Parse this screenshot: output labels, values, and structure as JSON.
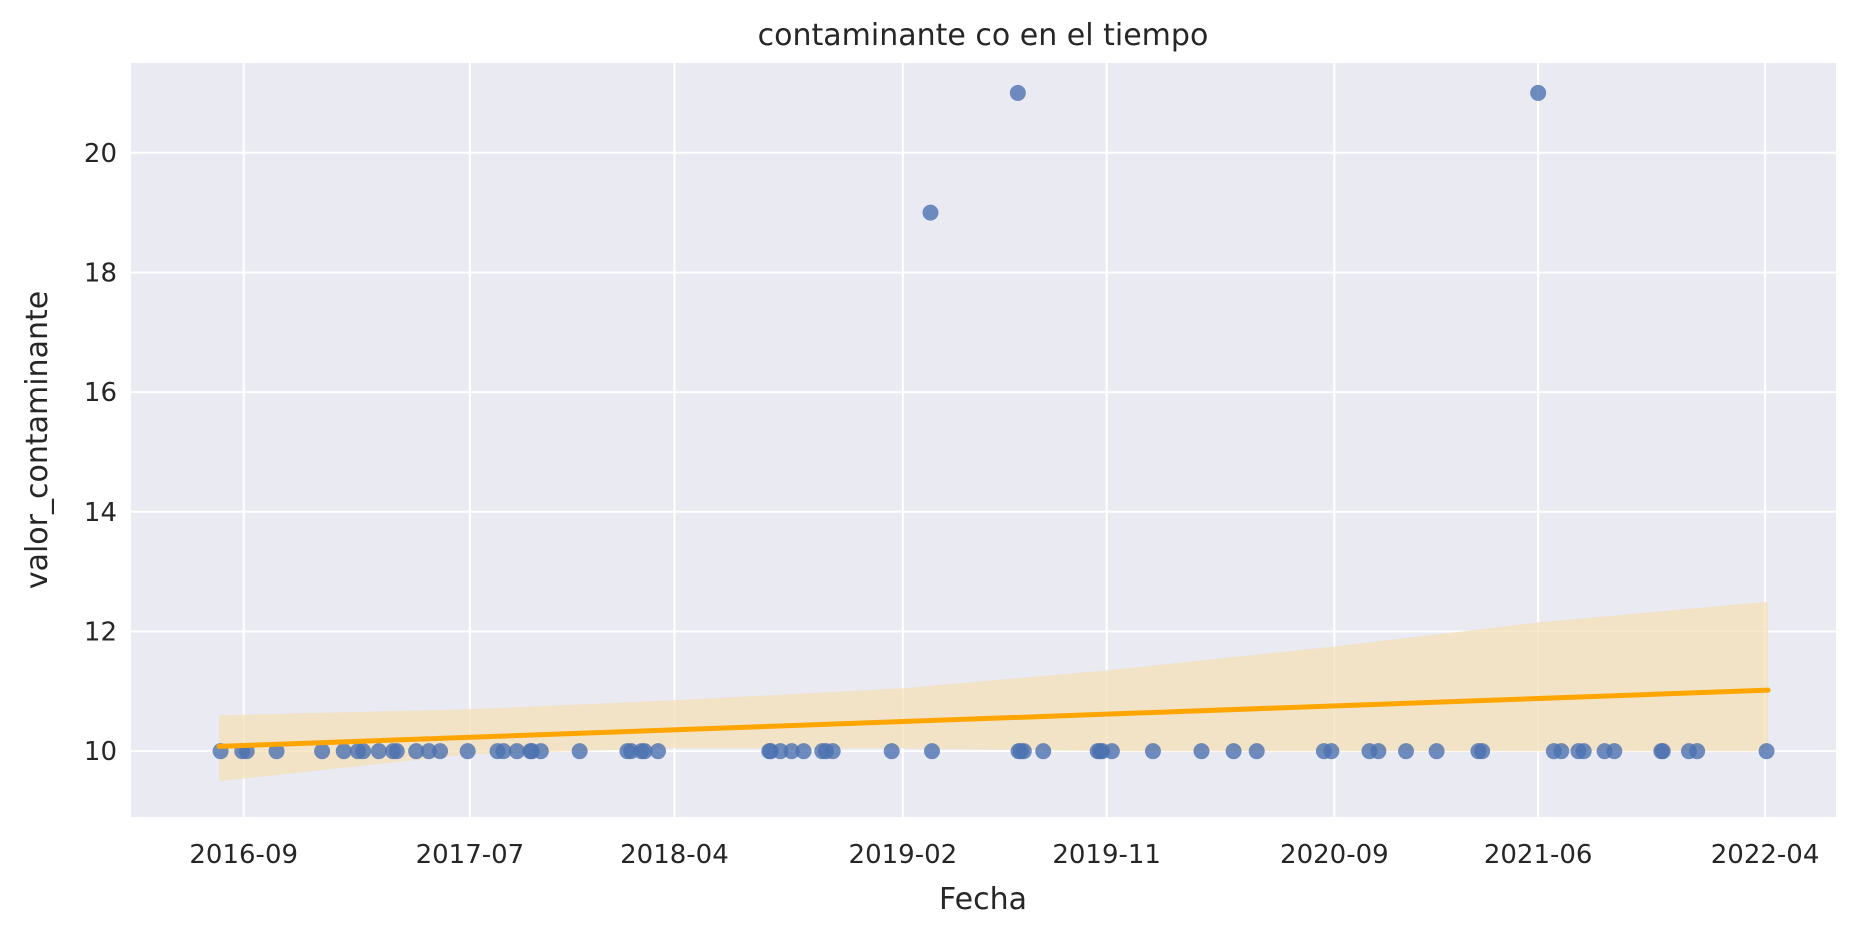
{
  "chart_data": {
    "type": "scatter",
    "title": "contaminante co en el tiempo",
    "xlabel": "Fecha",
    "ylabel": "valor_contaminante",
    "xlim": [
      "2016-04-03",
      "2022-07-05"
    ],
    "ylim": [
      8.9,
      21.5
    ],
    "x_ticks": [
      "2016-09",
      "2017-07",
      "2018-04",
      "2019-02",
      "2019-11",
      "2020-09",
      "2021-06",
      "2022-04"
    ],
    "y_ticks": [
      10,
      12,
      14,
      16,
      18,
      20
    ],
    "grid": true,
    "background": "#eaeaf2",
    "point_color": "#4c72b0",
    "trend_color": "#ffa500",
    "ci_color": "#f5deb3",
    "points": [
      {
        "x": "2016-08-01",
        "y": 10
      },
      {
        "x": "2016-08-30",
        "y": 10
      },
      {
        "x": "2016-09-05",
        "y": 10
      },
      {
        "x": "2016-10-15",
        "y": 10
      },
      {
        "x": "2016-12-15",
        "y": 10
      },
      {
        "x": "2017-01-13",
        "y": 10
      },
      {
        "x": "2017-02-01",
        "y": 10
      },
      {
        "x": "2017-02-08",
        "y": 10
      },
      {
        "x": "2017-03-01",
        "y": 10
      },
      {
        "x": "2017-03-20",
        "y": 10
      },
      {
        "x": "2017-03-25",
        "y": 10
      },
      {
        "x": "2017-04-20",
        "y": 10
      },
      {
        "x": "2017-05-07",
        "y": 10
      },
      {
        "x": "2017-05-22",
        "y": 10
      },
      {
        "x": "2017-06-28",
        "y": 10
      },
      {
        "x": "2017-08-07",
        "y": 10
      },
      {
        "x": "2017-08-15",
        "y": 10
      },
      {
        "x": "2017-09-02",
        "y": 10
      },
      {
        "x": "2017-09-20",
        "y": 10
      },
      {
        "x": "2017-09-22",
        "y": 10
      },
      {
        "x": "2017-10-04",
        "y": 10
      },
      {
        "x": "2017-11-25",
        "y": 10
      },
      {
        "x": "2018-01-28",
        "y": 10
      },
      {
        "x": "2018-02-02",
        "y": 10
      },
      {
        "x": "2018-02-16",
        "y": 10
      },
      {
        "x": "2018-02-20",
        "y": 10
      },
      {
        "x": "2018-03-10",
        "y": 10
      },
      {
        "x": "2018-08-06",
        "y": 10
      },
      {
        "x": "2018-08-08",
        "y": 10
      },
      {
        "x": "2018-08-21",
        "y": 10
      },
      {
        "x": "2018-09-05",
        "y": 10
      },
      {
        "x": "2018-09-21",
        "y": 10
      },
      {
        "x": "2018-10-16",
        "y": 10
      },
      {
        "x": "2018-10-21",
        "y": 10
      },
      {
        "x": "2018-10-30",
        "y": 10
      },
      {
        "x": "2019-01-17",
        "y": 10
      },
      {
        "x": "2019-03-12",
        "y": 10
      },
      {
        "x": "2019-03-10",
        "y": 19
      },
      {
        "x": "2019-07-05",
        "y": 21
      },
      {
        "x": "2019-07-06",
        "y": 10
      },
      {
        "x": "2019-07-09",
        "y": 10
      },
      {
        "x": "2019-07-13",
        "y": 10
      },
      {
        "x": "2019-08-08",
        "y": 10
      },
      {
        "x": "2019-10-20",
        "y": 10
      },
      {
        "x": "2019-10-23",
        "y": 10
      },
      {
        "x": "2019-10-26",
        "y": 10
      },
      {
        "x": "2019-11-08",
        "y": 10
      },
      {
        "x": "2020-01-02",
        "y": 10
      },
      {
        "x": "2020-03-07",
        "y": 10
      },
      {
        "x": "2020-04-19",
        "y": 10
      },
      {
        "x": "2020-05-20",
        "y": 10
      },
      {
        "x": "2020-08-18",
        "y": 10
      },
      {
        "x": "2020-08-28",
        "y": 10
      },
      {
        "x": "2020-10-18",
        "y": 10
      },
      {
        "x": "2020-10-30",
        "y": 10
      },
      {
        "x": "2020-12-06",
        "y": 10
      },
      {
        "x": "2021-01-16",
        "y": 10
      },
      {
        "x": "2021-03-13",
        "y": 10
      },
      {
        "x": "2021-03-18",
        "y": 10
      },
      {
        "x": "2021-06-01",
        "y": 21
      },
      {
        "x": "2021-06-22",
        "y": 10
      },
      {
        "x": "2021-07-02",
        "y": 10
      },
      {
        "x": "2021-07-25",
        "y": 10
      },
      {
        "x": "2021-08-01",
        "y": 10
      },
      {
        "x": "2021-08-29",
        "y": 10
      },
      {
        "x": "2021-09-11",
        "y": 10
      },
      {
        "x": "2021-11-13",
        "y": 10
      },
      {
        "x": "2021-11-15",
        "y": 10
      },
      {
        "x": "2021-12-20",
        "y": 10
      },
      {
        "x": "2021-12-31",
        "y": 10
      },
      {
        "x": "2022-04-03",
        "y": 10
      }
    ],
    "trend": {
      "x": [
        "2016-07-30",
        "2022-04-05"
      ],
      "y": [
        10.08,
        11.02
      ]
    },
    "confidence_band": {
      "x": [
        "2016-07-30",
        "2017-07-01",
        "2018-04-01",
        "2019-02-01",
        "2019-11-01",
        "2020-09-01",
        "2021-06-01",
        "2022-04-05"
      ],
      "lower": [
        9.5,
        9.95,
        10.05,
        10.05,
        10.0,
        10.0,
        10.0,
        10.0
      ],
      "upper": [
        10.6,
        10.7,
        10.85,
        11.05,
        11.35,
        11.75,
        12.15,
        12.5
      ]
    }
  }
}
